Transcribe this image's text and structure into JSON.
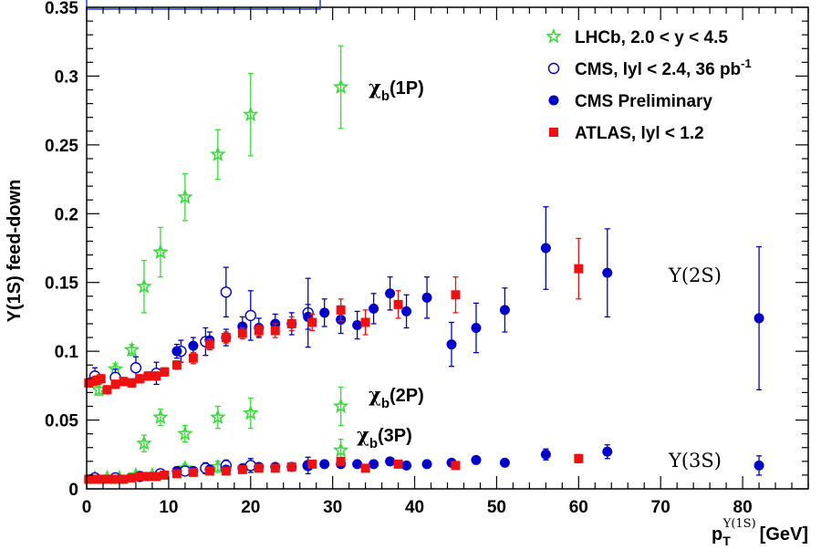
{
  "chart_data": {
    "type": "scatter",
    "xlabel_main": "p",
    "xlabel_sub": "T",
    "xlabel_sup": "Υ(1S)",
    "xlabel_unit": "[GeV]",
    "ylabel": "Υ(1S) feed-down",
    "xlim": [
      0,
      88
    ],
    "ylim": [
      0,
      0.35
    ],
    "x_ticks": [
      0,
      10,
      20,
      30,
      40,
      50,
      60,
      70,
      80
    ],
    "y_ticks": [
      0,
      0.05,
      0.1,
      0.15,
      0.2,
      0.25,
      0.3,
      0.35
    ],
    "x_tick_labels": [
      "0",
      "10",
      "20",
      "30",
      "40",
      "50",
      "60",
      "70",
      "80"
    ],
    "y_tick_labels": [
      "0",
      "0.05",
      "0.1",
      "0.15",
      "0.2",
      "0.25",
      "0.3",
      "0.35"
    ],
    "legend_position": "top-right",
    "legend": [
      {
        "label": "LHCb, 2.0 < y < 4.5",
        "marker": "open-star",
        "color": "#33dd33"
      },
      {
        "label_main": "CMS, lyl < 2.4, 36 pb",
        "label_sup": "-1",
        "marker": "open-circle",
        "color": "#0000cc"
      },
      {
        "label": "CMS Preliminary",
        "marker": "filled-circle",
        "color": "#0000cc"
      },
      {
        "label": "ATLAS, lyl < 1.2",
        "marker": "filled-square",
        "color": "#ee1111"
      }
    ],
    "annotations": [
      {
        "main": "χ",
        "sub": "b",
        "rest": "(1P)",
        "x": 35,
        "y": 0.3
      },
      {
        "main": "χ",
        "sub": "b",
        "rest": "(2P)",
        "x": 34,
        "y": 0.068
      },
      {
        "main": "χ",
        "sub": "b",
        "rest": "(3P)",
        "x": 33,
        "y": 0.038
      },
      {
        "text": "Υ(2S)",
        "x": 71,
        "y": 0.15
      },
      {
        "text": "Υ(3S)",
        "x": 71,
        "y": 0.02
      }
    ],
    "series": [
      {
        "name": "LHCb, 2.0 < y < 4.5",
        "marker": "open-star",
        "color": "#33dd33",
        "points": [
          {
            "x": 3.5,
            "y": 0.087,
            "err": 0.004
          },
          {
            "x": 5.5,
            "y": 0.101,
            "err": 0.004
          },
          {
            "x": 7.0,
            "y": 0.147,
            "err": 0.019
          },
          {
            "x": 9.0,
            "y": 0.172,
            "err": 0.018
          },
          {
            "x": 12.0,
            "y": 0.212,
            "err": 0.017
          },
          {
            "x": 16.0,
            "y": 0.243,
            "err": 0.018
          },
          {
            "x": 20.0,
            "y": 0.272,
            "err": 0.03
          },
          {
            "x": 31.0,
            "y": 0.292,
            "err": 0.03
          },
          {
            "x": 1.5,
            "y": 0.072,
            "err": 0.004
          },
          {
            "x": 7.0,
            "y": 0.033,
            "err": 0.006
          },
          {
            "x": 9.0,
            "y": 0.052,
            "err": 0.006
          },
          {
            "x": 12.0,
            "y": 0.04,
            "err": 0.006
          },
          {
            "x": 16.0,
            "y": 0.052,
            "err": 0.008
          },
          {
            "x": 20.0,
            "y": 0.055,
            "err": 0.011
          },
          {
            "x": 31.0,
            "y": 0.06,
            "err": 0.014
          },
          {
            "x": 1.0,
            "y": 0.008,
            "err": 0.002
          },
          {
            "x": 2.5,
            "y": 0.008,
            "err": 0.002
          },
          {
            "x": 4.0,
            "y": 0.008,
            "err": 0.002
          },
          {
            "x": 6.0,
            "y": 0.01,
            "err": 0.002
          },
          {
            "x": 8.0,
            "y": 0.01,
            "err": 0.002
          },
          {
            "x": 12.0,
            "y": 0.015,
            "err": 0.003
          },
          {
            "x": 16.0,
            "y": 0.016,
            "err": 0.004
          },
          {
            "x": 20.0,
            "y": 0.017,
            "err": 0.005
          },
          {
            "x": 31.0,
            "y": 0.028,
            "err": 0.008
          }
        ]
      },
      {
        "name": "CMS, lyl < 2.4, 36 pb-1",
        "marker": "open-circle",
        "color": "#0000cc",
        "points": [
          {
            "x": 1.0,
            "y": 0.082,
            "err": 0.006
          },
          {
            "x": 3.5,
            "y": 0.081,
            "err": 0.006
          },
          {
            "x": 6.0,
            "y": 0.088,
            "err": 0.008
          },
          {
            "x": 8.5,
            "y": 0.084,
            "err": 0.008
          },
          {
            "x": 11.5,
            "y": 0.1,
            "err": 0.008
          },
          {
            "x": 14.5,
            "y": 0.107,
            "err": 0.01
          },
          {
            "x": 17.0,
            "y": 0.143,
            "err": 0.018
          },
          {
            "x": 20.0,
            "y": 0.126,
            "err": 0.018
          },
          {
            "x": 27.0,
            "y": 0.128,
            "err": 0.025
          },
          {
            "x": 1.0,
            "y": 0.008,
            "err": 0.002
          },
          {
            "x": 3.5,
            "y": 0.008,
            "err": 0.002
          },
          {
            "x": 6.5,
            "y": 0.009,
            "err": 0.002
          },
          {
            "x": 9.0,
            "y": 0.011,
            "err": 0.002
          },
          {
            "x": 12.0,
            "y": 0.013,
            "err": 0.003
          },
          {
            "x": 14.5,
            "y": 0.015,
            "err": 0.004
          },
          {
            "x": 17.0,
            "y": 0.017,
            "err": 0.004
          },
          {
            "x": 20.0,
            "y": 0.017,
            "err": 0.005
          },
          {
            "x": 27.0,
            "y": 0.017,
            "err": 0.006
          }
        ]
      },
      {
        "name": "CMS Preliminary",
        "marker": "filled-circle",
        "color": "#0000cc",
        "points": [
          {
            "x": 11.0,
            "y": 0.1,
            "err": 0.005
          },
          {
            "x": 13.0,
            "y": 0.104,
            "err": 0.006
          },
          {
            "x": 15.0,
            "y": 0.108,
            "err": 0.006
          },
          {
            "x": 17.0,
            "y": 0.11,
            "err": 0.006
          },
          {
            "x": 19.0,
            "y": 0.118,
            "err": 0.007
          },
          {
            "x": 21.0,
            "y": 0.117,
            "err": 0.007
          },
          {
            "x": 23.0,
            "y": 0.12,
            "err": 0.007
          },
          {
            "x": 25.0,
            "y": 0.12,
            "err": 0.008
          },
          {
            "x": 27.0,
            "y": 0.125,
            "err": 0.009
          },
          {
            "x": 29.0,
            "y": 0.128,
            "err": 0.01
          },
          {
            "x": 31.0,
            "y": 0.123,
            "err": 0.01
          },
          {
            "x": 33.0,
            "y": 0.119,
            "err": 0.01
          },
          {
            "x": 35.0,
            "y": 0.131,
            "err": 0.011
          },
          {
            "x": 37.0,
            "y": 0.142,
            "err": 0.012
          },
          {
            "x": 39.0,
            "y": 0.129,
            "err": 0.012
          },
          {
            "x": 41.5,
            "y": 0.139,
            "err": 0.015
          },
          {
            "x": 44.5,
            "y": 0.105,
            "err": 0.016
          },
          {
            "x": 47.5,
            "y": 0.117,
            "err": 0.018
          },
          {
            "x": 51.0,
            "y": 0.13,
            "err": 0.016
          },
          {
            "x": 56.0,
            "y": 0.175,
            "err": 0.03
          },
          {
            "x": 63.5,
            "y": 0.157,
            "err": 0.032
          },
          {
            "x": 82.0,
            "y": 0.124,
            "err": 0.052
          },
          {
            "x": 11.0,
            "y": 0.013,
            "err": 0.002
          },
          {
            "x": 13.0,
            "y": 0.013,
            "err": 0.002
          },
          {
            "x": 15.0,
            "y": 0.014,
            "err": 0.002
          },
          {
            "x": 17.0,
            "y": 0.014,
            "err": 0.002
          },
          {
            "x": 19.0,
            "y": 0.015,
            "err": 0.002
          },
          {
            "x": 21.0,
            "y": 0.016,
            "err": 0.002
          },
          {
            "x": 23.0,
            "y": 0.016,
            "err": 0.002
          },
          {
            "x": 25.0,
            "y": 0.016,
            "err": 0.002
          },
          {
            "x": 27.0,
            "y": 0.017,
            "err": 0.002
          },
          {
            "x": 29.0,
            "y": 0.018,
            "err": 0.002
          },
          {
            "x": 31.0,
            "y": 0.018,
            "err": 0.002
          },
          {
            "x": 33.0,
            "y": 0.018,
            "err": 0.002
          },
          {
            "x": 35.0,
            "y": 0.018,
            "err": 0.002
          },
          {
            "x": 37.0,
            "y": 0.02,
            "err": 0.002
          },
          {
            "x": 39.0,
            "y": 0.017,
            "err": 0.002
          },
          {
            "x": 41.5,
            "y": 0.018,
            "err": 0.002
          },
          {
            "x": 44.5,
            "y": 0.019,
            "err": 0.002
          },
          {
            "x": 47.5,
            "y": 0.021,
            "err": 0.002
          },
          {
            "x": 51.0,
            "y": 0.019,
            "err": 0.002
          },
          {
            "x": 56.0,
            "y": 0.025,
            "err": 0.004
          },
          {
            "x": 63.5,
            "y": 0.027,
            "err": 0.005
          },
          {
            "x": 82.0,
            "y": 0.017,
            "err": 0.007
          }
        ]
      },
      {
        "name": "ATLAS, lyl < 1.2",
        "marker": "filled-square",
        "color": "#ee1111",
        "points": [
          {
            "x": 0.25,
            "y": 0.077,
            "err": 0.003
          },
          {
            "x": 0.75,
            "y": 0.078,
            "err": 0.003
          },
          {
            "x": 1.25,
            "y": 0.079,
            "err": 0.003
          },
          {
            "x": 1.75,
            "y": 0.08,
            "err": 0.003
          },
          {
            "x": 2.5,
            "y": 0.072,
            "err": 0.003
          },
          {
            "x": 3.5,
            "y": 0.076,
            "err": 0.003
          },
          {
            "x": 4.5,
            "y": 0.078,
            "err": 0.003
          },
          {
            "x": 5.5,
            "y": 0.077,
            "err": 0.003
          },
          {
            "x": 6.5,
            "y": 0.08,
            "err": 0.003
          },
          {
            "x": 7.5,
            "y": 0.082,
            "err": 0.003
          },
          {
            "x": 8.5,
            "y": 0.082,
            "err": 0.003
          },
          {
            "x": 9.5,
            "y": 0.085,
            "err": 0.003
          },
          {
            "x": 11.0,
            "y": 0.09,
            "err": 0.003
          },
          {
            "x": 13.0,
            "y": 0.095,
            "err": 0.004
          },
          {
            "x": 15.0,
            "y": 0.105,
            "err": 0.004
          },
          {
            "x": 17.0,
            "y": 0.11,
            "err": 0.004
          },
          {
            "x": 19.0,
            "y": 0.113,
            "err": 0.004
          },
          {
            "x": 21.0,
            "y": 0.115,
            "err": 0.004
          },
          {
            "x": 23.0,
            "y": 0.115,
            "err": 0.005
          },
          {
            "x": 25.0,
            "y": 0.12,
            "err": 0.005
          },
          {
            "x": 27.5,
            "y": 0.121,
            "err": 0.006
          },
          {
            "x": 31.0,
            "y": 0.13,
            "err": 0.008
          },
          {
            "x": 34.0,
            "y": 0.121,
            "err": 0.009
          },
          {
            "x": 38.0,
            "y": 0.134,
            "err": 0.01
          },
          {
            "x": 45.0,
            "y": 0.141,
            "err": 0.013
          },
          {
            "x": 60.0,
            "y": 0.16,
            "err": 0.022
          },
          {
            "x": 0.25,
            "y": 0.007,
            "err": 0.001
          },
          {
            "x": 0.75,
            "y": 0.007,
            "err": 0.001
          },
          {
            "x": 1.25,
            "y": 0.007,
            "err": 0.001
          },
          {
            "x": 1.75,
            "y": 0.007,
            "err": 0.001
          },
          {
            "x": 2.5,
            "y": 0.007,
            "err": 0.001
          },
          {
            "x": 3.5,
            "y": 0.007,
            "err": 0.001
          },
          {
            "x": 4.5,
            "y": 0.007,
            "err": 0.001
          },
          {
            "x": 5.5,
            "y": 0.008,
            "err": 0.001
          },
          {
            "x": 6.5,
            "y": 0.009,
            "err": 0.001
          },
          {
            "x": 7.5,
            "y": 0.009,
            "err": 0.001
          },
          {
            "x": 8.5,
            "y": 0.009,
            "err": 0.001
          },
          {
            "x": 9.5,
            "y": 0.01,
            "err": 0.001
          },
          {
            "x": 11.0,
            "y": 0.011,
            "err": 0.001
          },
          {
            "x": 13.0,
            "y": 0.012,
            "err": 0.001
          },
          {
            "x": 15.0,
            "y": 0.013,
            "err": 0.001
          },
          {
            "x": 17.0,
            "y": 0.013,
            "err": 0.001
          },
          {
            "x": 19.0,
            "y": 0.014,
            "err": 0.001
          },
          {
            "x": 21.0,
            "y": 0.015,
            "err": 0.001
          },
          {
            "x": 23.0,
            "y": 0.015,
            "err": 0.001
          },
          {
            "x": 25.0,
            "y": 0.016,
            "err": 0.001
          },
          {
            "x": 27.5,
            "y": 0.018,
            "err": 0.002
          },
          {
            "x": 31.0,
            "y": 0.02,
            "err": 0.002
          },
          {
            "x": 34.0,
            "y": 0.015,
            "err": 0.002
          },
          {
            "x": 38.0,
            "y": 0.018,
            "err": 0.002
          },
          {
            "x": 45.0,
            "y": 0.017,
            "err": 0.002
          },
          {
            "x": 60.0,
            "y": 0.022,
            "err": 0.003
          }
        ]
      }
    ]
  }
}
